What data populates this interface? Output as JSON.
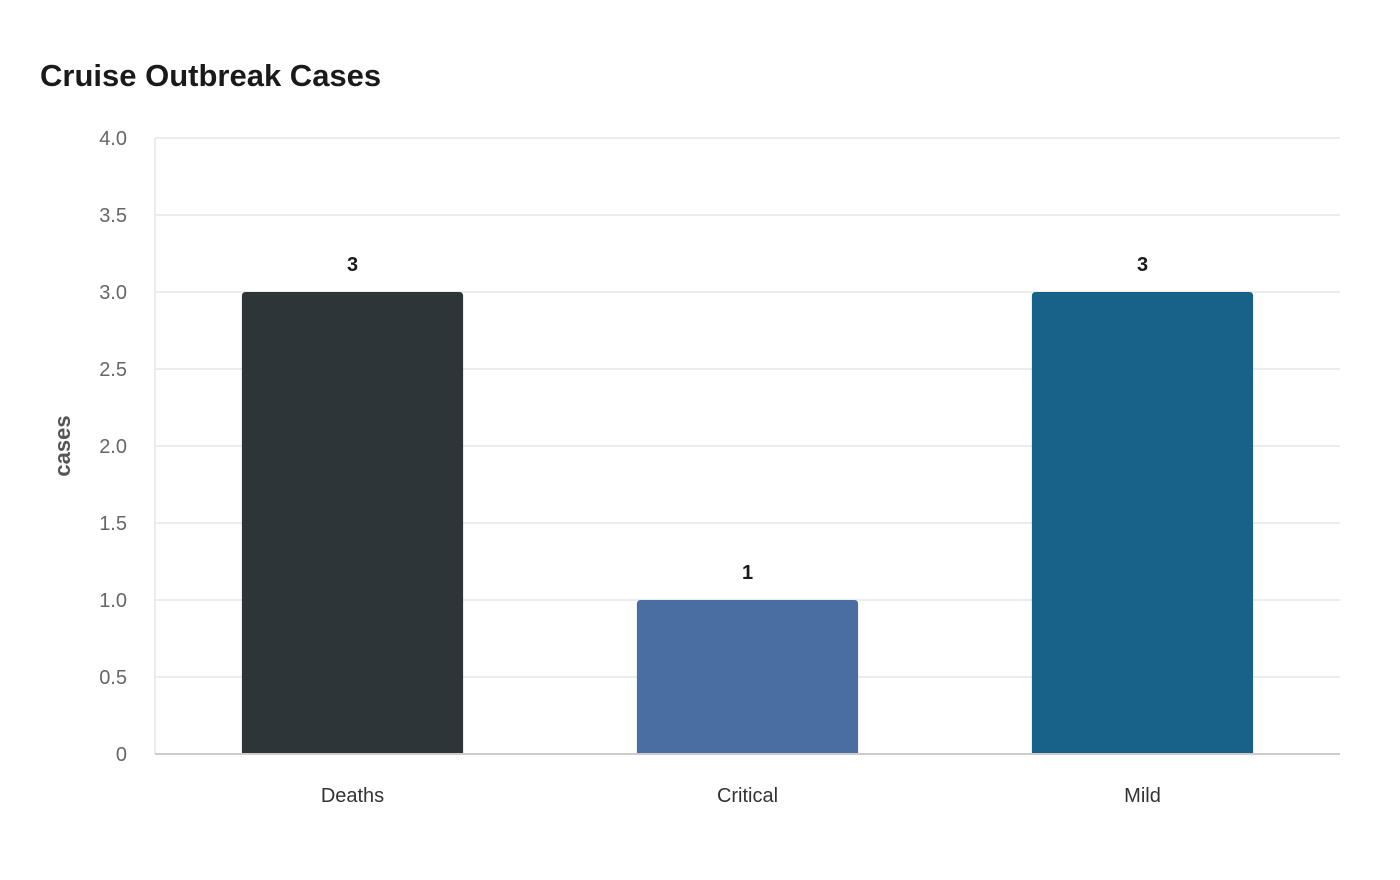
{
  "chart_data": {
    "type": "bar",
    "title": "Cruise Outbreak Cases",
    "xlabel": "",
    "ylabel": "cases",
    "categories": [
      "Deaths",
      "Critical",
      "Mild"
    ],
    "values": [
      3,
      1,
      3
    ],
    "ylim": [
      0,
      4
    ],
    "yticks": [
      0,
      0.5,
      1,
      1.5,
      2,
      2.5,
      3,
      3.5,
      4
    ],
    "ytick_labels": [
      "0",
      "0.5",
      "1.0",
      "1.5",
      "2.0",
      "2.5",
      "3.0",
      "3.5",
      "4.0"
    ],
    "data_labels": [
      "3",
      "1",
      "3"
    ],
    "bar_colors": [
      "#2e3538",
      "#4a6da2",
      "#186189"
    ],
    "grid": true,
    "legend": "none"
  }
}
